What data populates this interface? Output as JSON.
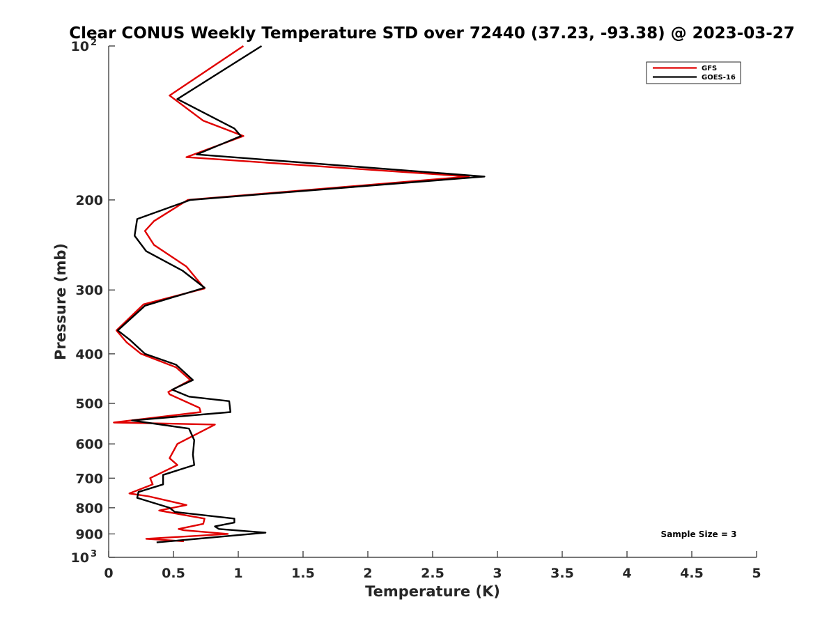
{
  "chart_data": {
    "type": "line",
    "title": "Clear CONUS Weekly Temperature STD over 72440 (37.23, -93.38) @ 2023-03-27",
    "xlabel": "Temperature (K)",
    "ylabel": "Pressure (mb)",
    "xlim": [
      0,
      5
    ],
    "ylim": [
      100,
      1000
    ],
    "y_scale": "log",
    "y_reversed": true,
    "grid": false,
    "legend_position": "top-right",
    "x_ticks": [
      0,
      0.5,
      1,
      1.5,
      2,
      2.5,
      3,
      3.5,
      4,
      4.5,
      5
    ],
    "x_tick_labels": [
      "0",
      "0.5",
      "1",
      "1.5",
      "2",
      "2.5",
      "3",
      "3.5",
      "4",
      "4.5",
      "5"
    ],
    "y_ticks": [
      100,
      200,
      300,
      400,
      500,
      600,
      700,
      800,
      900,
      1000
    ],
    "y_tick_labels": [
      {
        "base": "10",
        "sup": "2"
      },
      {
        "base": "200"
      },
      {
        "base": "300"
      },
      {
        "base": "400"
      },
      {
        "base": "500"
      },
      {
        "base": "600"
      },
      {
        "base": "700"
      },
      {
        "base": "800"
      },
      {
        "base": "900"
      },
      {
        "base": "10",
        "sup": "3"
      }
    ],
    "annotation": "Sample Size = 3",
    "series": [
      {
        "name": "GFS",
        "color": "#e00000",
        "x": [
          1.04,
          0.47,
          0.73,
          1.04,
          0.6,
          2.78,
          0.61,
          0.35,
          0.28,
          0.35,
          0.6,
          0.74,
          0.27,
          0.06,
          0.14,
          0.25,
          0.52,
          0.63,
          0.46,
          0.47,
          0.7,
          0.71,
          0.04,
          0.82,
          0.53,
          0.47,
          0.53,
          0.32,
          0.34,
          0.16,
          0.31,
          0.6,
          0.39,
          0.74,
          0.73,
          0.54,
          0.58,
          0.92,
          0.29,
          0.58
        ],
        "y": [
          100,
          125,
          140,
          150,
          165,
          180,
          200,
          220,
          230,
          245,
          270,
          298,
          320,
          360,
          380,
          400,
          425,
          450,
          475,
          480,
          510,
          520,
          545,
          550,
          600,
          640,
          660,
          700,
          720,
          750,
          760,
          790,
          810,
          840,
          860,
          880,
          885,
          900,
          920,
          930
        ]
      },
      {
        "name": "GOES-16",
        "color": "#000000",
        "x": [
          1.18,
          0.53,
          0.97,
          1.02,
          0.68,
          2.9,
          0.63,
          0.22,
          0.2,
          0.29,
          0.57,
          0.74,
          0.28,
          0.07,
          0.16,
          0.28,
          0.52,
          0.65,
          0.49,
          0.62,
          0.93,
          0.94,
          0.18,
          0.62,
          0.66,
          0.65,
          0.66,
          0.42,
          0.42,
          0.23,
          0.22,
          0.47,
          0.51,
          0.97,
          0.97,
          0.82,
          0.85,
          1.21,
          0.37
        ],
        "y": [
          100,
          127,
          145,
          150,
          163,
          180,
          200,
          218,
          235,
          252,
          275,
          297,
          322,
          360,
          375,
          400,
          420,
          450,
          470,
          485,
          495,
          520,
          540,
          560,
          590,
          630,
          660,
          690,
          720,
          745,
          765,
          800,
          815,
          840,
          855,
          870,
          880,
          895,
          935
        ]
      }
    ]
  }
}
